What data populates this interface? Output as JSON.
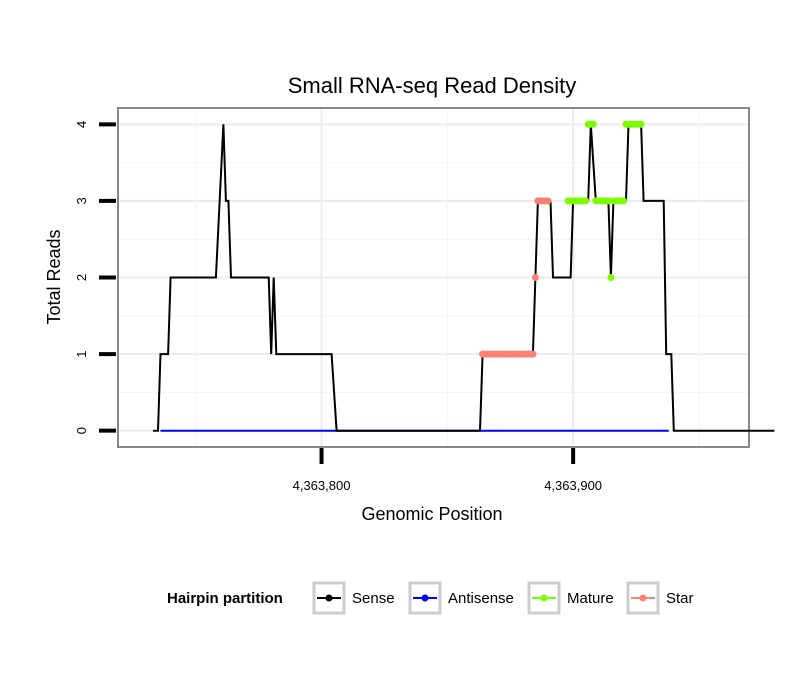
{
  "chart_data": {
    "type": "line",
    "title": "Small RNA-seq Read Density",
    "xlabel": "Genomic Position",
    "ylabel": "Total Reads",
    "xlim": [
      4363719.5,
      4363969.5
    ],
    "ylim": [
      -0.2,
      4.2
    ],
    "x_ticks": [
      4363800,
      4363900
    ],
    "x_tick_labels": [
      "4,363,800",
      "4,363,900"
    ],
    "y_ticks": [
      0,
      1,
      2,
      3,
      4
    ],
    "y_tick_labels": [
      "0",
      "1",
      "2",
      "3",
      "4"
    ],
    "grid": true,
    "legend": {
      "title": "Hairpin partition",
      "position": "bottom",
      "items": [
        {
          "name": "Sense",
          "color": "#000000"
        },
        {
          "name": "Antisense",
          "color": "#0000ff"
        },
        {
          "name": "Mature",
          "color": "#7cfc00"
        },
        {
          "name": "Star",
          "color": "#fa8072"
        }
      ]
    },
    "series": [
      {
        "name": "Sense",
        "color": "#000000",
        "points": [
          [
            4363733,
            0
          ],
          [
            4363735,
            0
          ],
          [
            4363736,
            1
          ],
          [
            4363739,
            1
          ],
          [
            4363740,
            2
          ],
          [
            4363758,
            2
          ],
          [
            4363761,
            4
          ],
          [
            4363762,
            3
          ],
          [
            4363763,
            3
          ],
          [
            4363764,
            2
          ],
          [
            4363779,
            2
          ],
          [
            4363780,
            1
          ],
          [
            4363781,
            2
          ],
          [
            4363782,
            1
          ],
          [
            4363804,
            1
          ],
          [
            4363806,
            0
          ],
          [
            4363863,
            0
          ],
          [
            4363864,
            1
          ],
          [
            4363884,
            1
          ],
          [
            4363885,
            2
          ],
          [
            4363886,
            3
          ],
          [
            4363891,
            3
          ],
          [
            4363892,
            2
          ],
          [
            4363899,
            2
          ],
          [
            4363900,
            3
          ],
          [
            4363906,
            3
          ],
          [
            4363907,
            4
          ],
          [
            4363909,
            3
          ],
          [
            4363914,
            3
          ],
          [
            4363915,
            2
          ],
          [
            4363916,
            3
          ],
          [
            4363921,
            3
          ],
          [
            4363922,
            4
          ],
          [
            4363927,
            4
          ],
          [
            4363928,
            3
          ],
          [
            4363936,
            3
          ],
          [
            4363937,
            1
          ],
          [
            4363939,
            1
          ],
          [
            4363940,
            0
          ],
          [
            4363980,
            0
          ]
        ]
      },
      {
        "name": "Antisense",
        "color": "#0000ff",
        "points": [
          [
            4363736,
            0
          ],
          [
            4363938,
            0
          ]
        ]
      },
      {
        "name": "Mature",
        "color": "#7cfc00",
        "points": [
          [
            4363898,
            3
          ],
          [
            4363899,
            3
          ],
          [
            4363900,
            3
          ],
          [
            4363901,
            3
          ],
          [
            4363902,
            3
          ],
          [
            4363903,
            3
          ],
          [
            4363904,
            3
          ],
          [
            4363905,
            3
          ],
          [
            4363906,
            4
          ],
          [
            4363907,
            4
          ],
          [
            4363908,
            4
          ],
          [
            4363909,
            3
          ],
          [
            4363910,
            3
          ],
          [
            4363911,
            3
          ],
          [
            4363912,
            3
          ],
          [
            4363913,
            3
          ],
          [
            4363914,
            3
          ],
          [
            4363915,
            2
          ],
          [
            4363916,
            3
          ],
          [
            4363917,
            3
          ],
          [
            4363918,
            3
          ],
          [
            4363919,
            3
          ],
          [
            4363920,
            3
          ],
          [
            4363921,
            4
          ],
          [
            4363922,
            4
          ],
          [
            4363923,
            4
          ],
          [
            4363924,
            4
          ],
          [
            4363925,
            4
          ],
          [
            4363926,
            4
          ],
          [
            4363927,
            4
          ]
        ]
      },
      {
        "name": "Star",
        "color": "#fa8072",
        "points": [
          [
            4363864,
            1
          ],
          [
            4363865,
            1
          ],
          [
            4363866,
            1
          ],
          [
            4363867,
            1
          ],
          [
            4363868,
            1
          ],
          [
            4363869,
            1
          ],
          [
            4363870,
            1
          ],
          [
            4363871,
            1
          ],
          [
            4363872,
            1
          ],
          [
            4363873,
            1
          ],
          [
            4363874,
            1
          ],
          [
            4363875,
            1
          ],
          [
            4363876,
            1
          ],
          [
            4363877,
            1
          ],
          [
            4363878,
            1
          ],
          [
            4363879,
            1
          ],
          [
            4363880,
            1
          ],
          [
            4363881,
            1
          ],
          [
            4363882,
            1
          ],
          [
            4363883,
            1
          ],
          [
            4363884,
            1
          ],
          [
            4363885,
            2
          ],
          [
            4363886,
            3
          ],
          [
            4363887,
            3
          ],
          [
            4363888,
            3
          ],
          [
            4363889,
            3
          ],
          [
            4363890,
            3
          ]
        ]
      }
    ]
  }
}
